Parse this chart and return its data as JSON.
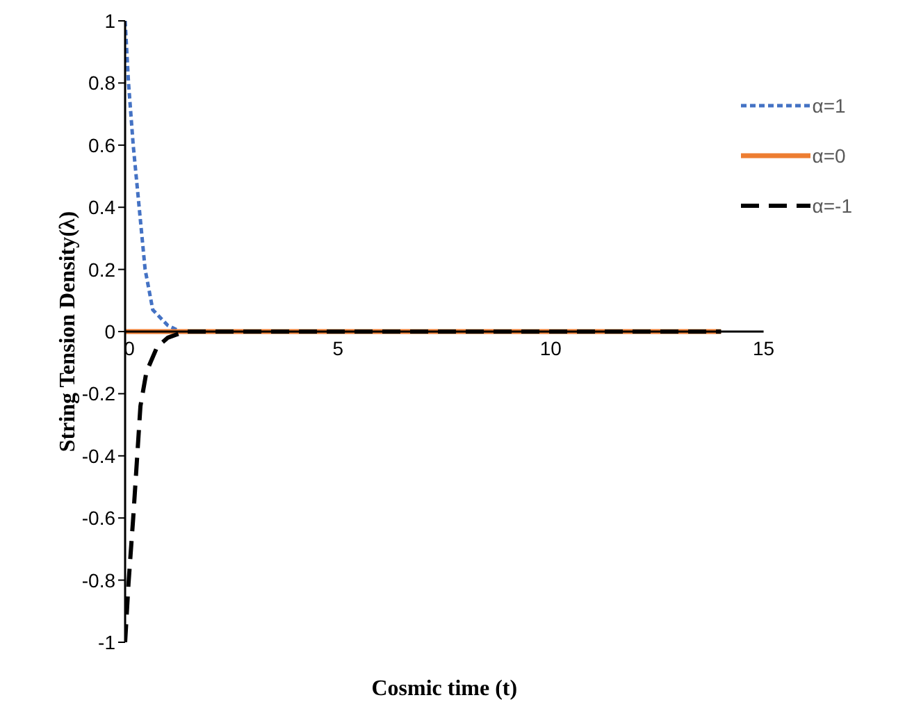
{
  "chart_data": {
    "type": "line",
    "xlabel": "Cosmic time (t)",
    "ylabel": "String Tension Density(λ)",
    "xlim": [
      0,
      15
    ],
    "xticks": [
      0,
      5,
      10,
      15
    ],
    "ylim": [
      -1,
      1
    ],
    "yticks": [
      -1,
      -0.8,
      -0.6,
      -0.4,
      -0.2,
      0,
      0.2,
      0.4,
      0.6,
      0.8,
      1
    ],
    "legend": "top right",
    "marker": "none",
    "series": [
      {
        "name": "α=1",
        "color": "#4472c4",
        "line_style": "dotted",
        "x": [
          0,
          0.08,
          0.19,
          0.33,
          0.47,
          0.65,
          1.0,
          1.3
        ],
        "values": [
          1,
          0.8,
          0.6,
          0.4,
          0.2,
          0.07,
          0.02,
          0
        ]
      },
      {
        "name": "α=0",
        "color": "#ed7d31",
        "line_style": "solid",
        "x": [
          0,
          14
        ],
        "values": [
          0,
          0
        ]
      },
      {
        "name": "α=-1",
        "color": "#000000",
        "line_style": "dashed",
        "x": [
          0,
          0.08,
          0.19,
          0.28,
          0.36,
          0.5,
          0.75,
          1.0,
          1.4,
          2,
          14
        ],
        "values": [
          -1,
          -0.81,
          -0.6,
          -0.41,
          -0.24,
          -0.13,
          -0.05,
          -0.02,
          0,
          0,
          0
        ]
      }
    ]
  }
}
